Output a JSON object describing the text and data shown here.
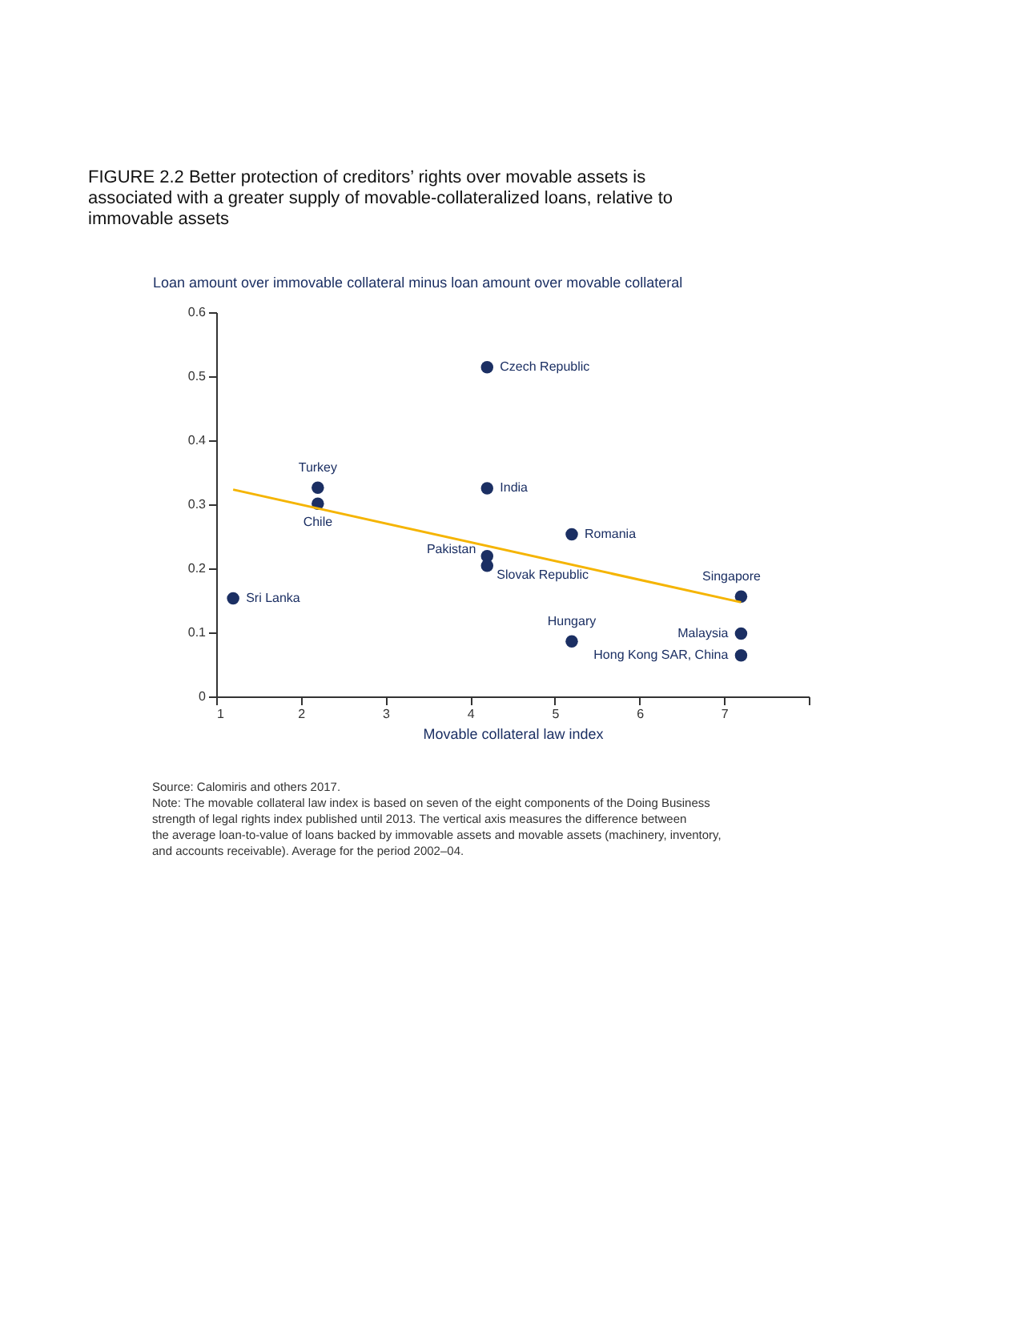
{
  "chart_data": {
    "type": "scatter",
    "title": "FIGURE 2.2 Better protection of creditors’ rights over movable assets is associated with a greater supply of movable-collateralized loans, relative to immovable assets",
    "ylabel": "Loan amount over immovable collateral minus loan amount over movable collateral",
    "xlabel": "Movable collateral law index",
    "xlim": [
      1,
      8
    ],
    "xticks": [
      1,
      2,
      3,
      4,
      5,
      6,
      7,
      {
        "value": 8,
        "label": null
      }
    ],
    "ylim": [
      0,
      0.6
    ],
    "yticks": [
      0,
      0.1,
      0.2,
      0.3,
      0.4,
      0.5,
      0.6
    ],
    "grid": false,
    "series": [
      {
        "marker": "circle",
        "color": "#1b2f63",
        "x": [
          4.2,
          4.2,
          2.2,
          2.2,
          5.2,
          4.2,
          4.2,
          1.2,
          7.2,
          5.2,
          7.2,
          7.2
        ],
        "values": [
          0.514,
          0.325,
          0.326,
          0.301,
          0.253,
          0.219,
          0.204,
          0.153,
          0.156,
          0.086,
          0.098,
          0.064
        ]
      },
      {
        "type": "line",
        "color": "#f5b400",
        "x": [
          1.2,
          7.2
        ],
        "values": [
          0.323,
          0.147
        ]
      }
    ],
    "annotations": [
      {
        "text": "Czech Republic",
        "x": 4.2,
        "y": 0.514
      },
      {
        "text": "India",
        "x": 4.2,
        "y": 0.325
      },
      {
        "text": "Turkey",
        "x": 2.2,
        "y": 0.326
      },
      {
        "text": "Chile",
        "x": 2.2,
        "y": 0.301
      },
      {
        "text": "Romania",
        "x": 5.2,
        "y": 0.253
      },
      {
        "text": "Pakistan",
        "x": 4.2,
        "y": 0.219
      },
      {
        "text": "Slovak Republic",
        "x": 4.2,
        "y": 0.204
      },
      {
        "text": "Sri Lanka",
        "x": 1.2,
        "y": 0.153
      },
      {
        "text": "Singapore",
        "x": 7.2,
        "y": 0.156
      },
      {
        "text": "Hungary",
        "x": 5.2,
        "y": 0.086
      },
      {
        "text": "Malaysia",
        "x": 7.2,
        "y": 0.098
      },
      {
        "text": "Hong Kong SAR, China",
        "x": 7.2,
        "y": 0.064
      },
      "Source: Calomiris and others 2017.",
      "Note: The movable collateral law index is based on seven of the eight components of the Doing Business strength of legal rights index published until 2013. The vertical axis measures the difference between the average loan-to-value of loans backed by immovable assets and movable assets (machinery, inventory, and accounts receivable). Average for the period 2002–04."
    ]
  }
}
